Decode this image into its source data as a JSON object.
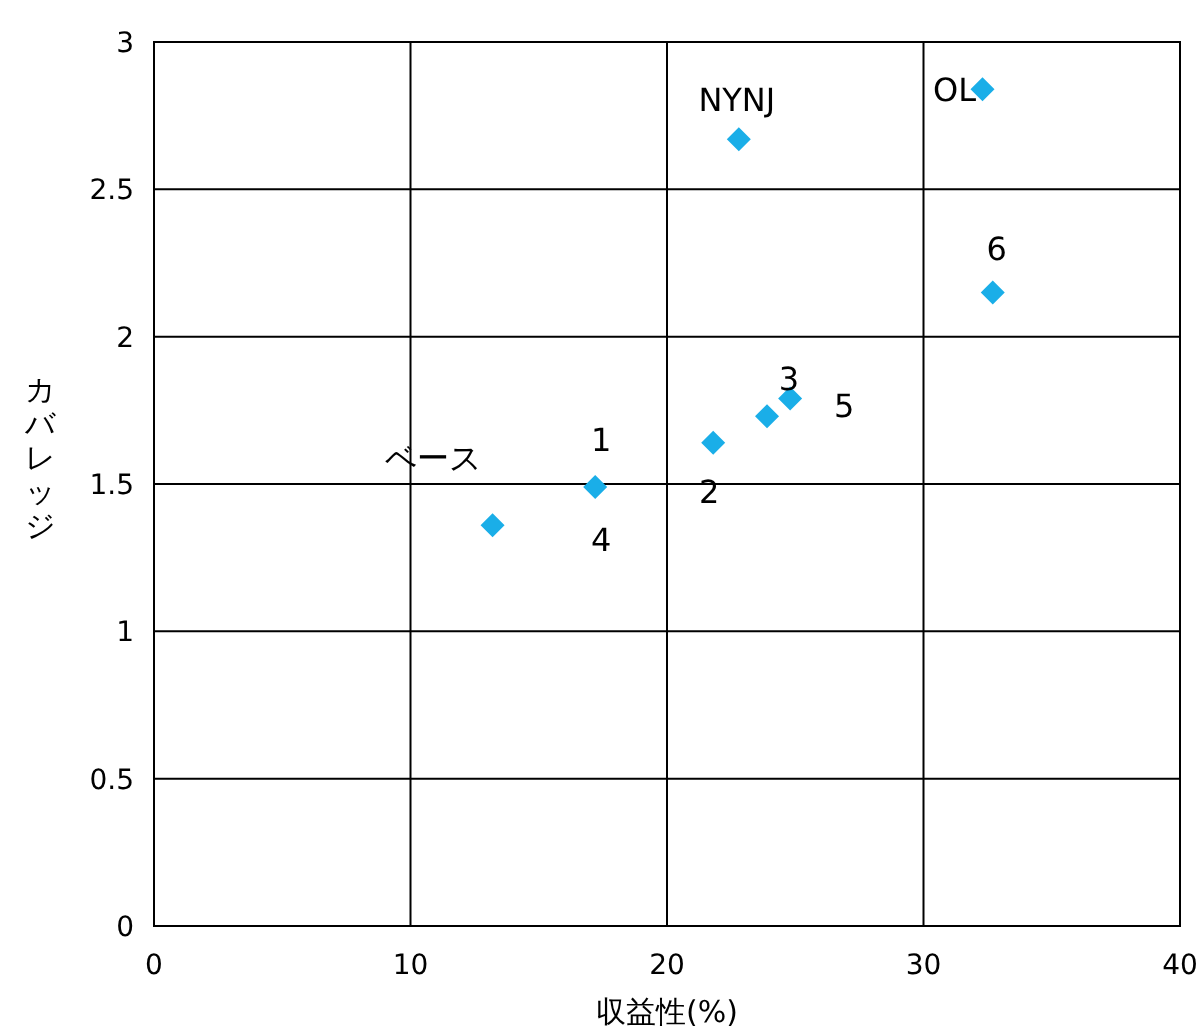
{
  "chart_data": {
    "type": "scatter",
    "xlabel": "収益性(%)",
    "ylabel": "カバレッジ",
    "x": [
      13.2,
      17.2,
      21.8,
      23.9,
      24.8,
      22.8,
      32.3,
      32.7
    ],
    "values": [
      1.36,
      1.49,
      1.64,
      1.73,
      1.79,
      2.67,
      2.84,
      2.15
    ],
    "color": "#1aaee8",
    "marker": "diamond",
    "grid": true,
    "xlim": [
      0,
      40
    ],
    "ylim": [
      0,
      3
    ],
    "xticks": [
      0,
      10,
      20,
      30,
      40
    ],
    "yticks": [
      0,
      0.5,
      1,
      1.5,
      2,
      2.5,
      3
    ],
    "annotations": [
      {
        "text": "ベース",
        "x": 13.2,
        "y": 1.36
      },
      {
        "text": "1",
        "x": 17.2,
        "y": 1.49
      },
      {
        "text": "4",
        "x": 17.2,
        "y": 1.49
      },
      {
        "text": "2",
        "x": 21.8,
        "y": 1.64
      },
      {
        "text": "3",
        "x": 23.9,
        "y": 1.73
      },
      {
        "text": "5",
        "x": 24.8,
        "y": 1.79
      },
      {
        "text": "NYNJ",
        "x": 22.8,
        "y": 2.67
      },
      {
        "text": "OL",
        "x": 32.3,
        "y": 2.84
      },
      {
        "text": "6",
        "x": 32.7,
        "y": 2.15
      }
    ]
  }
}
